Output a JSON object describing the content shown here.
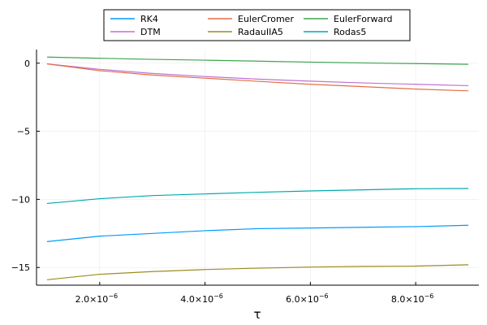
{
  "chart_data": {
    "type": "line",
    "title": "",
    "xlabel": "τ",
    "ylabel": "",
    "xlim": [
      8e-07,
      9.2e-06
    ],
    "ylim": [
      -16.3,
      1.0
    ],
    "x_ticks": [
      {
        "value": 2e-06,
        "mant": "2.0×10",
        "exp": "−6"
      },
      {
        "value": 4e-06,
        "mant": "4.0×10",
        "exp": "−6"
      },
      {
        "value": 6e-06,
        "mant": "6.0×10",
        "exp": "−6"
      },
      {
        "value": 8e-06,
        "mant": "8.0×10",
        "exp": "−6"
      }
    ],
    "y_ticks": [
      {
        "value": 0,
        "label": "0"
      },
      {
        "value": -5,
        "label": "−5"
      },
      {
        "value": -10,
        "label": "−10"
      },
      {
        "value": -15,
        "label": "−15"
      }
    ],
    "grid": true,
    "legend": {
      "position": "top, outside",
      "columns": 3
    },
    "x": [
      1e-06,
      2e-06,
      3e-06,
      4e-06,
      5e-06,
      6e-06,
      7e-06,
      8e-06,
      9e-06
    ],
    "series": [
      {
        "name": "RK4",
        "color": "#009AFA",
        "values": [
          -13.1,
          -12.7,
          -12.5,
          -12.3,
          -12.15,
          -12.1,
          -12.05,
          -12.0,
          -11.9
        ]
      },
      {
        "name": "DTM",
        "color": "#C271D2",
        "values": [
          -0.05,
          -0.45,
          -0.75,
          -0.98,
          -1.17,
          -1.32,
          -1.45,
          -1.55,
          -1.65
        ]
      },
      {
        "name": "EulerCromer",
        "color": "#E26F46",
        "values": [
          -0.05,
          -0.55,
          -0.87,
          -1.1,
          -1.33,
          -1.55,
          -1.72,
          -1.9,
          -2.03
        ]
      },
      {
        "name": "RadauIIA5",
        "color": "#9C8D1F",
        "values": [
          -15.9,
          -15.5,
          -15.3,
          -15.15,
          -15.05,
          -14.97,
          -14.92,
          -14.9,
          -14.8
        ]
      },
      {
        "name": "EulerForward",
        "color": "#3DA44E",
        "values": [
          0.45,
          0.36,
          0.28,
          0.22,
          0.15,
          0.08,
          0.02,
          -0.03,
          -0.08
        ]
      },
      {
        "name": "Rodas5",
        "color": "#00A9AD",
        "values": [
          -10.3,
          -9.95,
          -9.72,
          -9.6,
          -9.48,
          -9.38,
          -9.3,
          -9.22,
          -9.2
        ]
      }
    ],
    "legend_order": [
      "RK4",
      "EulerCromer",
      "EulerForward",
      "DTM",
      "RadauIIA5",
      "Rodas5"
    ]
  }
}
